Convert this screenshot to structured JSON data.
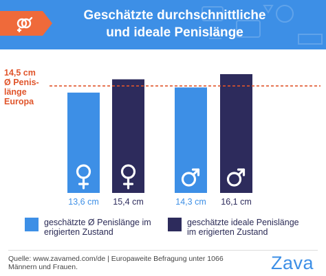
{
  "header": {
    "title_line1": "Geschätzte durchschnittliche",
    "title_line2": "und ideale Penislänge",
    "logo_icon": "gender-symbols-icon"
  },
  "reference": {
    "line1": "14,5 cm",
    "line2": "Ø Penis-",
    "line3": "länge",
    "line4": "Europa"
  },
  "colors": {
    "header_bg": "#3d8fe6",
    "badge": "#ef6a3a",
    "estimated": "#3d8fe6",
    "ideal": "#2d2b5c",
    "reference_line": "#e0552b"
  },
  "chart_data": {
    "type": "bar",
    "title": "Geschätzte durchschnittliche und ideale Penislänge",
    "unit": "cm",
    "groups": [
      "female",
      "male"
    ],
    "series": [
      {
        "name": "geschätzte Ø Penislänge im erigierten Zustand",
        "color": "#3d8fe6"
      },
      {
        "name": "geschätzte ideale Penislänge im erigierten Zustand",
        "color": "#2d2b5c"
      }
    ],
    "bars": [
      {
        "group": "female",
        "series": 0,
        "value": 13.6,
        "label": "13,6 cm",
        "icon": "female-symbol-icon"
      },
      {
        "group": "female",
        "series": 1,
        "value": 15.4,
        "label": "15,4 cm",
        "icon": "female-symbol-icon"
      },
      {
        "group": "male",
        "series": 0,
        "value": 14.3,
        "label": "14,3 cm",
        "icon": "male-symbol-icon"
      },
      {
        "group": "male",
        "series": 1,
        "value": 16.1,
        "label": "16,1 cm",
        "icon": "male-symbol-icon"
      }
    ],
    "reference_value": 14.5,
    "ylim": [
      0,
      16.1
    ]
  },
  "legend": {
    "estimated_line1": "geschätzte Ø Penislänge im",
    "estimated_line2": "erigierten Zustand",
    "ideal_line1": "geschätzte ideale Penislänge",
    "ideal_line2": "im erigierten Zustand"
  },
  "footer": {
    "source_line1": "Quelle: www.zavamed.com/de | Europaweite Befragung unter 1066",
    "source_line2": "Männern und Frauen.",
    "brand": "Zava"
  }
}
